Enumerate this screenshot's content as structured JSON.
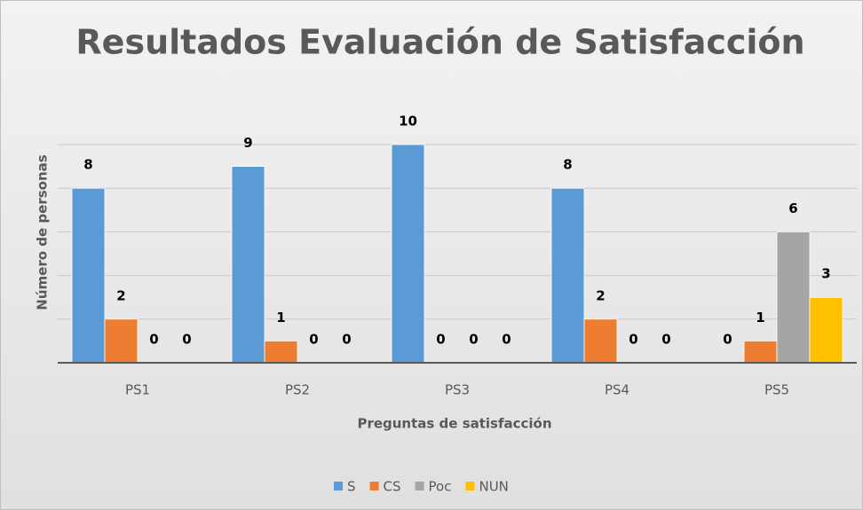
{
  "chart_data": {
    "type": "bar",
    "title": "Resultados Evaluación de Satisfacción",
    "x_label": "Preguntas de satisfacción",
    "y_label": "Número de personas",
    "categories": [
      "PS1",
      "PS2",
      "PS3",
      "PS4",
      "PS5"
    ],
    "series": [
      {
        "name": "S",
        "color": "#5b9bd5",
        "values": [
          8,
          9,
          10,
          8,
          0
        ]
      },
      {
        "name": "CS",
        "color": "#ed7d31",
        "values": [
          2,
          1,
          0,
          2,
          1
        ]
      },
      {
        "name": "Poc",
        "color": "#a5a5a5",
        "values": [
          0,
          0,
          0,
          0,
          6
        ]
      },
      {
        "name": "NUN",
        "color": "#ffc000",
        "values": [
          0,
          0,
          0,
          0,
          3
        ]
      }
    ],
    "ylim": [
      0,
      10
    ],
    "yticks": [
      0,
      2,
      4,
      6,
      8,
      10
    ],
    "grid": true,
    "legend": "bottom"
  }
}
